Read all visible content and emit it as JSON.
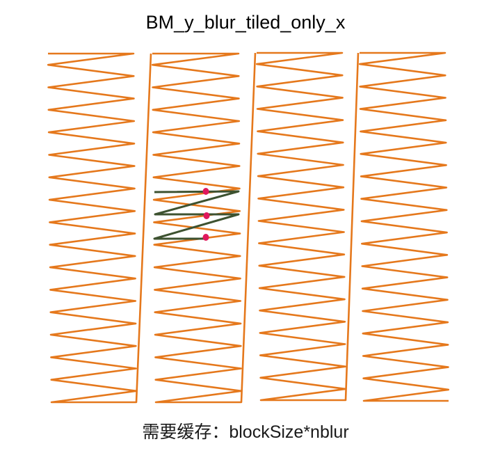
{
  "title": "BM_y_blur_tiled_only_x",
  "caption": "需要缓存：blockSize*nblur",
  "colors": {
    "scan_path": "#e5781c",
    "highlight_path": "#3d5230",
    "marker": "#e0185c"
  }
}
